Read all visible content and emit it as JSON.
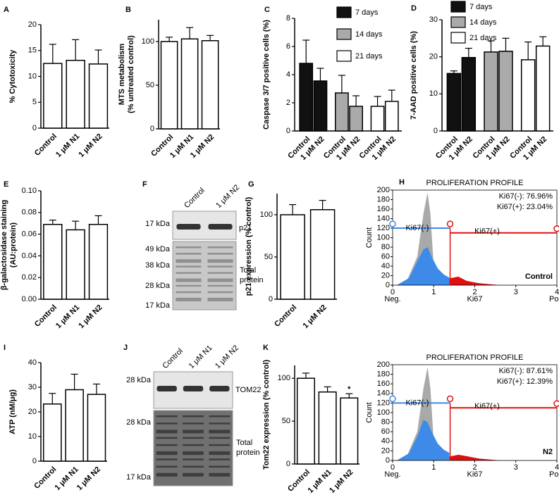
{
  "chart_data": [
    {
      "type": "bar",
      "panel": "A",
      "ylabel": [
        "% Cytotoxicity"
      ],
      "categories": [
        "Control",
        "1 μM N1",
        "1 μM N2"
      ],
      "values": [
        12.5,
        13.1,
        12.4
      ],
      "errors": [
        3.7,
        4.0,
        2.7
      ],
      "color": "#ffffff",
      "ylim": [
        0,
        20
      ],
      "yticks": [
        0,
        5,
        10,
        15,
        20
      ]
    },
    {
      "type": "bar",
      "panel": "B",
      "ylabel": [
        "MTS metabolism",
        "(% untreated control)"
      ],
      "categories": [
        "Control",
        "1 μM N1",
        "1 μM N2"
      ],
      "values": [
        100,
        103,
        101
      ],
      "errors": [
        5,
        13,
        6
      ],
      "color": "#ffffff",
      "ylim": [
        0,
        125
      ],
      "yticks": [
        0,
        50,
        100
      ]
    },
    {
      "type": "grouped",
      "panel": "C",
      "ylabel": [
        "Caspase 3/7 positive cells (%)"
      ],
      "categories": [
        "Control",
        "1 μM N2"
      ],
      "series": [
        {
          "name": "7 days",
          "color": "#111111",
          "values": [
            4.8,
            3.55
          ],
          "errors": [
            1.65,
            0.9
          ]
        },
        {
          "name": "14 days",
          "color": "#aaaaaa",
          "values": [
            2.7,
            1.75
          ],
          "errors": [
            1.25,
            0.75
          ]
        },
        {
          "name": "21 days",
          "color": "#ffffff",
          "values": [
            1.75,
            2.1
          ],
          "errors": [
            0.7,
            0.8
          ]
        }
      ],
      "ylim": [
        0,
        8
      ],
      "yticks": [
        0,
        2,
        4,
        6,
        8
      ]
    },
    {
      "type": "grouped",
      "panel": "D",
      "ylabel": [
        "7-AAD positive cells (%)"
      ],
      "categories": [
        "Control",
        "1 μM N2"
      ],
      "series": [
        {
          "name": "7 days",
          "color": "#111111",
          "values": [
            15.5,
            19.8
          ],
          "errors": [
            0.7,
            2.5
          ]
        },
        {
          "name": "14 days",
          "color": "#aaaaaa",
          "values": [
            21.3,
            21.5
          ],
          "errors": [
            3.0,
            3.5
          ]
        },
        {
          "name": "21 days",
          "color": "#ffffff",
          "values": [
            19.2,
            22.9
          ],
          "errors": [
            4.8,
            2.5
          ]
        }
      ],
      "ylim": [
        0,
        30
      ],
      "yticks": [
        0,
        10,
        20,
        30
      ]
    },
    {
      "type": "bar",
      "panel": "E",
      "ylabel": [
        "β-galactosidase staining",
        "(AU:protein)"
      ],
      "categories": [
        "Control",
        "1 μM N1",
        "1 μM N2"
      ],
      "values": [
        0.069,
        0.064,
        0.069
      ],
      "errors": [
        0.004,
        0.008,
        0.008
      ],
      "color": "#ffffff",
      "ylim": [
        0,
        0.1
      ],
      "yticks": [
        {
          "value": 0,
          "label": "0.00"
        },
        {
          "value": 0.02,
          "label": "0.02"
        },
        {
          "value": 0.04,
          "label": "0.04"
        },
        {
          "value": 0.06,
          "label": "0.06"
        },
        {
          "value": 0.08,
          "label": "0.08"
        },
        {
          "value": 0.1,
          "label": "0.10"
        }
      ]
    },
    {
      "type": "blot",
      "panel": "F",
      "lanes": [
        "Control",
        "1 μM N2"
      ],
      "markers": [
        "17 kDa",
        "49 kDa",
        "38 kDa",
        "28 kDa",
        "17 kDa"
      ],
      "target": "p21",
      "loading": [
        "Total",
        "protein"
      ]
    },
    {
      "type": "bar",
      "panel": "G",
      "ylabel": [
        "p21 expression (% control)"
      ],
      "categories": [
        "Control",
        "1 μM N2"
      ],
      "values": [
        100,
        106
      ],
      "errors": [
        12,
        11
      ],
      "color": "#ffffff",
      "ylim": [
        0,
        125
      ],
      "yticks": [
        0,
        50,
        100
      ]
    },
    {
      "type": "flow",
      "panel": "H",
      "title": "PROLIFERATION PROFILE",
      "legend": [
        "Ki67(-): 76.96%",
        "Ki67(+): 23.04%"
      ],
      "gates": [
        "Ki67(-)",
        "Ki67(+)"
      ],
      "sample": "Control",
      "ylabel": "Count",
      "xlabel": "Ki67",
      "xends": [
        "Neg.",
        "Pos."
      ],
      "xlim": [
        0,
        4
      ],
      "xticks": [
        0,
        1,
        2,
        3,
        4
      ],
      "ylim": [
        0,
        200
      ],
      "yticks": [
        0,
        20,
        40,
        60,
        80,
        100,
        120,
        140,
        160,
        180,
        200
      ]
    },
    {
      "type": "bar",
      "panel": "I",
      "ylabel": [
        "ATP (nM/μg)"
      ],
      "categories": [
        "Control",
        "1 μM N1",
        "1 μM N2"
      ],
      "values": [
        23.2,
        29,
        27.1
      ],
      "errors": [
        4.3,
        6.3,
        4.2
      ],
      "color": "#ffffff",
      "ylim": [
        0,
        40
      ],
      "yticks": [
        0,
        10,
        20,
        30,
        40
      ]
    },
    {
      "type": "blot",
      "panel": "J",
      "lanes": [
        "Control",
        "1 μM N1",
        "1 μM N2"
      ],
      "markers": [
        "28 kDa",
        "28 kDa",
        "17 kDa"
      ],
      "target": "TOM22",
      "loading": [
        "Total",
        "protein"
      ]
    },
    {
      "type": "bar",
      "panel": "K",
      "ylabel": [
        "Tom22 expression (% control)"
      ],
      "categories": [
        "Control",
        "1 μM N1",
        "1 μM N2"
      ],
      "values": [
        100,
        84,
        77
      ],
      "errors": [
        6,
        6,
        5
      ],
      "color": "#ffffff",
      "ylim": [
        0,
        115
      ],
      "yticks": [
        0,
        50,
        100
      ],
      "annotation": "*"
    },
    {
      "type": "flow",
      "title": "PROLIFERATION PROFILE",
      "legend": [
        "Ki67(-): 87.61%",
        "Ki67(+): 12.39%"
      ],
      "gates": [
        "Ki67(-)",
        "Ki67(+)"
      ],
      "sample": "N2",
      "ylabel": "Count",
      "xlabel": "Ki67",
      "xends": [
        "Neg.",
        "Pos."
      ],
      "xlim": [
        0,
        4
      ],
      "xticks": [
        0,
        1,
        2,
        3,
        4
      ],
      "ylim": [
        0,
        200
      ],
      "yticks": [
        0,
        20,
        40,
        60,
        80,
        100,
        120,
        140,
        160,
        180,
        200
      ]
    }
  ]
}
